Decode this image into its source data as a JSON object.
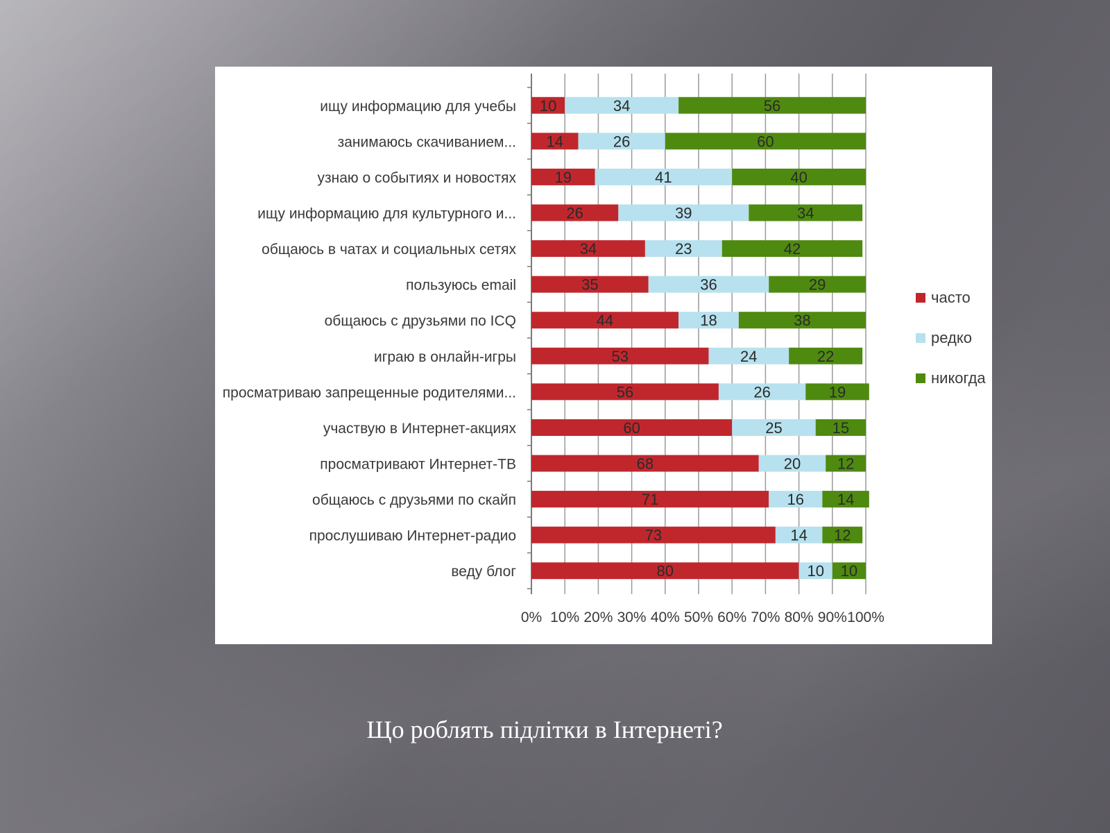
{
  "slide": {
    "caption": "Що роблять підлітки в Інтернеті?"
  },
  "chart_data": {
    "type": "bar",
    "orientation": "horizontal",
    "stacked": "percent",
    "categories": [
      "ищу информацию для учебы",
      "занимаюсь скачиванием...",
      "узнаю о событиях и новостях",
      "ищу информацию для культурного и...",
      "общаюсь в чатах и социальных сетях",
      "пользуюсь email",
      "общаюсь с друзьями по ICQ",
      "играю в онлайн-игры",
      "просматриваю запрещенные родителями...",
      "участвую в Интернет-акциях",
      "просматривают Интернет-ТВ",
      "общаюсь с друзьями по скайп",
      "прослушиваю Интернет-радио",
      "веду блог"
    ],
    "series": [
      {
        "name": "часто",
        "color": "#c0272d",
        "values": [
          10,
          14,
          19,
          26,
          34,
          35,
          44,
          53,
          56,
          60,
          68,
          71,
          73,
          80
        ]
      },
      {
        "name": "редко",
        "color": "#b7e1ee",
        "values": [
          34,
          26,
          41,
          39,
          23,
          36,
          18,
          24,
          26,
          25,
          20,
          16,
          14,
          10
        ]
      },
      {
        "name": "никогда",
        "color": "#4f8a10",
        "values": [
          56,
          60,
          40,
          34,
          42,
          29,
          38,
          22,
          19,
          15,
          12,
          14,
          12,
          10
        ]
      }
    ],
    "x_ticks": [
      "0%",
      "10%",
      "20%",
      "30%",
      "40%",
      "50%",
      "60%",
      "70%",
      "80%",
      "90%",
      "100%"
    ],
    "xlim": [
      0,
      100
    ],
    "grid": true,
    "legend_position": "right"
  }
}
